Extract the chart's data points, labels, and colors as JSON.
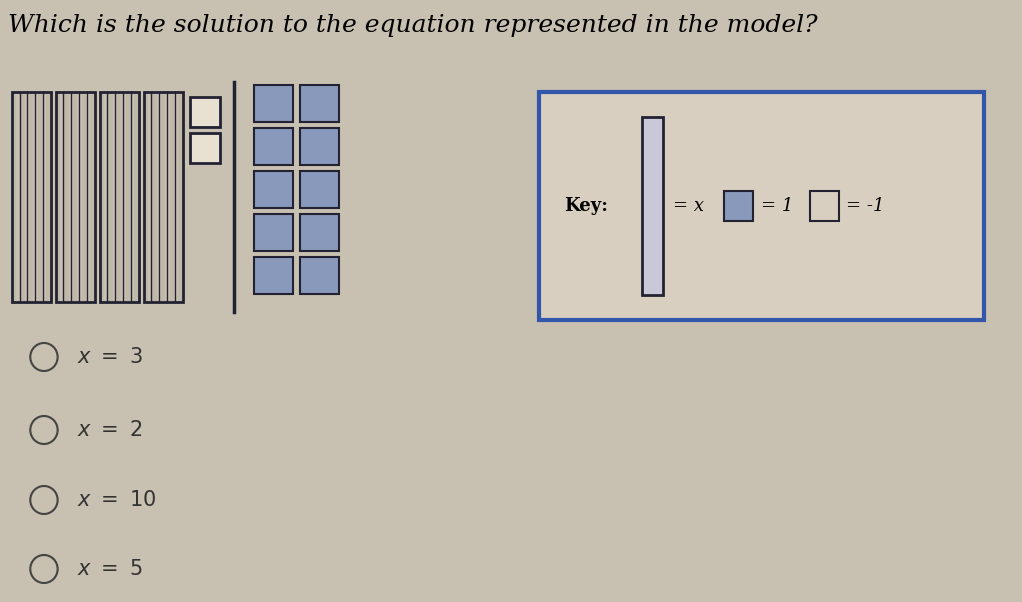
{
  "title": "Which is the solution to the equation represented in the model?",
  "title_fontsize": 18,
  "bg_color": "#c8c0b0",
  "x_tile_color": "#d8cfc0",
  "x_tile_border": "#222233",
  "unit_tile_color": "#8899bb",
  "unit_tile_border": "#222233",
  "divider_color": "#222233",
  "key_box_border": "#3355aa",
  "key_bg": "#d8cfc0",
  "answer_choices": [
    "x = 3",
    "x = 2",
    "x = 10",
    "x = 5"
  ],
  "answer_fontsize": 15,
  "key_tall_bar_color": "#c8c8d8",
  "key_text_color": "#111111"
}
